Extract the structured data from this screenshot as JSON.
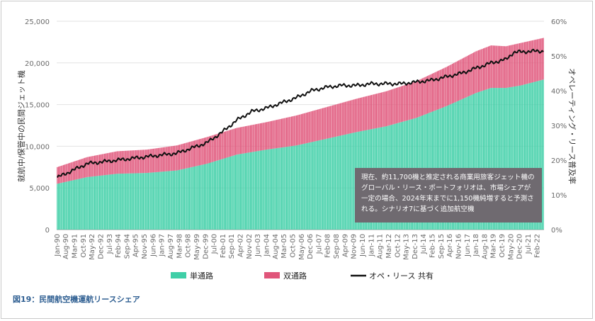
{
  "caption": "図19：民間航空機運航リースシェア",
  "callout": "現在、約11,700機と推定される商業用旅客ジェット機のグローバル・リース・ポートフォリオは、市場シェアが一定の場合、2024年末までに1,150機純増すると予測される。シナリオ7に基づく追加航空機",
  "colors": {
    "single_aisle": "#3fcfa7",
    "twin_aisle": "#e0557a",
    "lease_share": "#111111",
    "callout_bg": "#6f6a70"
  },
  "chart_data": {
    "type": "area",
    "ylabel": "就航中/保管中の民間ジェット機",
    "y2label": "オペレーティング・リース普及率",
    "ylim": [
      0,
      25000
    ],
    "y2lim": [
      0,
      60
    ],
    "yticks": [
      "0",
      "5,000",
      "10,000",
      "15,000",
      "20,000",
      "25,000"
    ],
    "y2ticks": [
      "0%",
      "10%",
      "20%",
      "30%",
      "40%",
      "50%",
      "60%"
    ],
    "x_start": "Jan-90",
    "x_end": "Jul-22",
    "xtick_labels": [
      "Jan-90",
      "Aug-90",
      "Mar-91",
      "Oct-91",
      "May-92",
      "Dec-92",
      "Jul-93",
      "Feb-94",
      "Sep-94",
      "Apr-95",
      "Nov-95",
      "Jun-96",
      "Jan-97",
      "Aug-97",
      "Mar-98",
      "Oct-98",
      "May-99",
      "Dec-99",
      "Jul-00",
      "Feb-01",
      "Sep-01",
      "Apr-02",
      "Nov-02",
      "Jun-03",
      "Jan-04",
      "Aug-04",
      "Mar-05",
      "Oct-05",
      "May-06",
      "Dec-06",
      "Jul-07",
      "Feb-08",
      "Sep-08",
      "Apr-09",
      "Nov-09",
      "Jun-10",
      "Jan-11",
      "Aug-11",
      "Mar-12",
      "Oct-12",
      "May-13",
      "Dec-13",
      "Jul-14",
      "Feb-15",
      "Sep-15",
      "Apr-16",
      "Nov-16",
      "Jun-17",
      "Jan-18",
      "Aug-18",
      "Mar-19",
      "Oct-19",
      "May-20",
      "Dec-20",
      "Jul-21",
      "Feb-22"
    ],
    "series": [
      {
        "name": "単通路",
        "type": "area",
        "x": [
          "Jan-90",
          "Jan-92",
          "Jan-94",
          "Jan-96",
          "Jan-98",
          "Jan-00",
          "Jan-02",
          "Jan-04",
          "Jan-06",
          "Jan-08",
          "Jan-10",
          "Jan-12",
          "Jan-14",
          "Jan-16",
          "Jan-18",
          "Jan-19",
          "Jan-20",
          "Jan-21",
          "Jul-22"
        ],
        "values": [
          5500,
          6300,
          6700,
          6800,
          7100,
          7900,
          9000,
          9600,
          10100,
          10900,
          11700,
          12400,
          13400,
          14800,
          16400,
          17000,
          17000,
          17300,
          18000
        ]
      },
      {
        "name": "双通路",
        "type": "area",
        "x": [
          "Jan-90",
          "Jan-92",
          "Jan-94",
          "Jan-96",
          "Jan-98",
          "Jan-00",
          "Jan-02",
          "Jan-04",
          "Jan-06",
          "Jan-08",
          "Jan-10",
          "Jan-12",
          "Jan-14",
          "Jan-16",
          "Jan-18",
          "Jan-19",
          "Jan-20",
          "Jan-21",
          "Jul-22"
        ],
        "values": [
          2000,
          2400,
          2700,
          2800,
          3000,
          3200,
          3200,
          3300,
          3600,
          3800,
          4000,
          4200,
          4400,
          4700,
          5000,
          5100,
          5000,
          5100,
          5000
        ]
      },
      {
        "name": "オペ・リース 共有",
        "type": "line",
        "axis": "right",
        "x": [
          "Jan-90",
          "Jan-92",
          "Jan-94",
          "Jan-96",
          "Jan-98",
          "Jan-00",
          "Jan-01",
          "Jan-02",
          "Jan-03",
          "Jan-04",
          "Jan-05",
          "Jan-06",
          "Jan-07",
          "Jan-08",
          "Jan-09",
          "Jan-10",
          "Jan-11",
          "Jan-12",
          "Jan-13",
          "Jan-14",
          "Jan-15",
          "Jan-16",
          "Jan-17",
          "Jan-18",
          "Jan-19",
          "Jan-20",
          "Jul-20",
          "Jan-21",
          "Jan-22",
          "Jul-22"
        ],
        "values": [
          15,
          19,
          20,
          21,
          22,
          25,
          28,
          31.5,
          34,
          35,
          36.5,
          38,
          40,
          41,
          41.5,
          41.5,
          42,
          42,
          42,
          42.5,
          43,
          44,
          45,
          46.5,
          48,
          49,
          51,
          51.2,
          51.4,
          51.4
        ]
      }
    ]
  }
}
